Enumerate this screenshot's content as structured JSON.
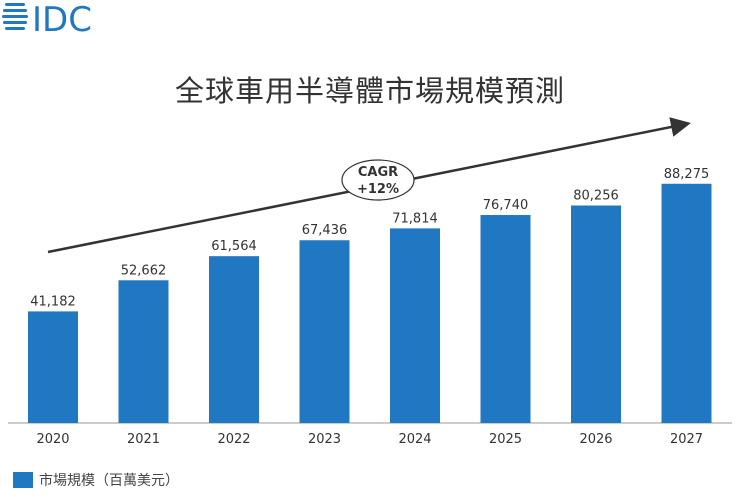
{
  "logo_text": "IDC",
  "chart_data": {
    "type": "bar",
    "title": "全球車用半導體市場規模預測",
    "categories": [
      "2020",
      "2021",
      "2022",
      "2023",
      "2024",
      "2025",
      "2026",
      "2027"
    ],
    "series": [
      {
        "name": "市場規模（百萬美元）",
        "values": [
          41182,
          52662,
          61564,
          67436,
          71814,
          76740,
          80256,
          88275
        ]
      }
    ],
    "data_labels": [
      "41,182",
      "52,662",
      "61,564",
      "67,436",
      "71,814",
      "76,740",
      "80,256",
      "88,275"
    ],
    "ylim": [
      0,
      100000
    ],
    "grid": false,
    "legend": "bottom-left",
    "annotation": {
      "line1": "CAGR",
      "line2": "+12%"
    },
    "colors": {
      "bar": "#1f78c1",
      "text": "#333333",
      "logo": "#1f78c1"
    }
  }
}
